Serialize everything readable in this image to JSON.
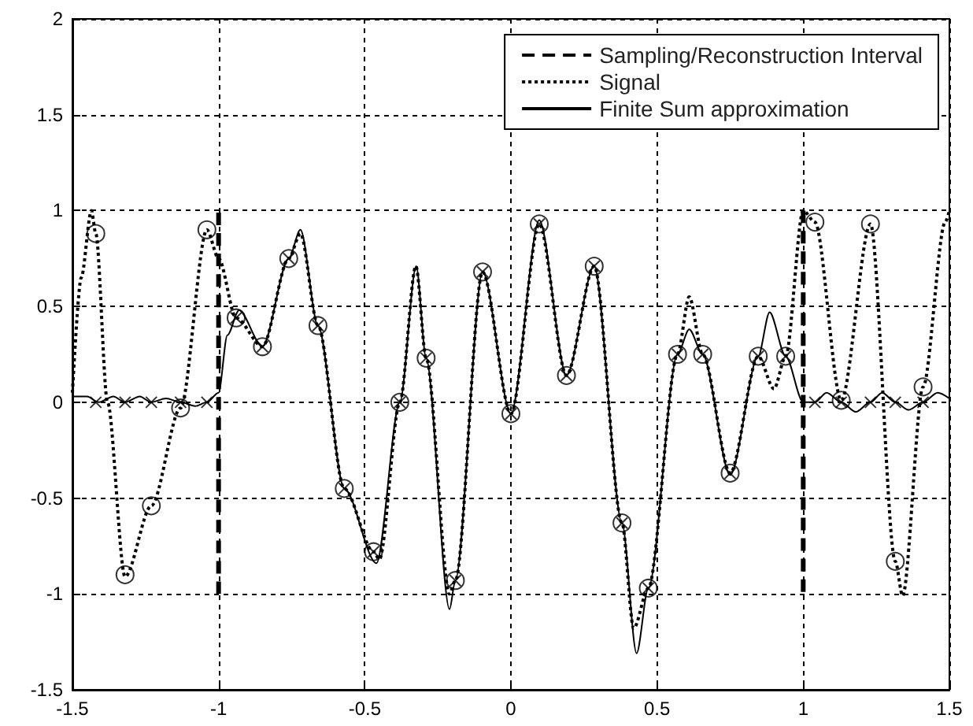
{
  "chart_data": {
    "type": "line",
    "xlim": [
      -1.5,
      1.5
    ],
    "ylim": [
      -1.5,
      2
    ],
    "xticks": [
      -1.5,
      -1,
      -0.5,
      0,
      0.5,
      1,
      1.5
    ],
    "yticks": [
      -1.5,
      -1,
      -0.5,
      0,
      0.5,
      1,
      1.5,
      2
    ],
    "grid": true,
    "legend": "top right",
    "series": [
      {
        "name": "Sampling/Reconstruction Interval",
        "type": "line",
        "line_style": "dashed",
        "marker": "none",
        "color": "#000000",
        "x": [
          -1,
          -1,
          0,
          1,
          1
        ],
        "values": [
          -1,
          1,
          null,
          1,
          -1
        ]
      },
      {
        "name": "Signal",
        "type": "line",
        "line_style": "dotted",
        "marker": "none",
        "color": "#000000",
        "x": [
          -1.5,
          -1.47,
          -1.435,
          -1.42,
          -1.38,
          -1.32,
          -1.23,
          -1.13,
          -1.04,
          -1.0,
          -0.94,
          -0.85,
          -0.76,
          -0.72,
          -0.66,
          -0.57,
          -0.47,
          -0.45,
          -0.38,
          -0.325,
          -0.29,
          -0.21,
          -0.19,
          -0.097,
          0.0,
          0.097,
          0.19,
          0.285,
          0.38,
          0.42,
          0.47,
          0.57,
          0.61,
          0.656,
          0.75,
          0.846,
          0.9,
          0.94,
          1.0,
          1.04,
          1.13,
          1.23,
          1.315,
          1.34,
          1.41,
          1.486,
          1.5
        ],
        "values": [
          0.05,
          0.65,
          1.0,
          0.88,
          0.0,
          -0.91,
          -0.54,
          -0.03,
          0.9,
          0.75,
          0.44,
          0.29,
          0.75,
          0.88,
          0.4,
          -0.45,
          -0.78,
          -0.82,
          0.0,
          0.71,
          0.23,
          -1.0,
          -0.93,
          0.68,
          -0.06,
          0.93,
          0.14,
          0.71,
          -0.63,
          -1.18,
          -0.97,
          0.25,
          0.55,
          0.25,
          -0.37,
          0.24,
          0.07,
          0.24,
          1.0,
          0.94,
          0.01,
          0.93,
          -0.83,
          -1.01,
          0.08,
          0.94,
          1.0
        ]
      },
      {
        "name": "Finite Sum approximation",
        "type": "line",
        "line_style": "solid",
        "marker": "none",
        "color": "#000000",
        "x": [
          -1.5,
          -1.45,
          -1.41,
          -1.36,
          -1.32,
          -1.27,
          -1.23,
          -1.18,
          -1.13,
          -1.08,
          -1.04,
          -1.0,
          -0.97,
          -0.93,
          -0.85,
          -0.76,
          -0.72,
          -0.66,
          -0.57,
          -0.46,
          -0.38,
          -0.324,
          -0.29,
          -0.21,
          -0.19,
          -0.097,
          0.0,
          0.097,
          0.19,
          0.285,
          0.38,
          0.43,
          0.47,
          0.57,
          0.61,
          0.656,
          0.75,
          0.846,
          0.885,
          0.94,
          1.0,
          1.04,
          1.08,
          1.13,
          1.18,
          1.23,
          1.27,
          1.315,
          1.36,
          1.41,
          1.46,
          1.5
        ],
        "values": [
          0.03,
          0.03,
          0.0,
          0.03,
          0.0,
          0.03,
          0.0,
          0.02,
          0.0,
          -0.02,
          0.0,
          0.05,
          0.35,
          0.48,
          0.29,
          0.75,
          0.9,
          0.4,
          -0.45,
          -0.84,
          0.0,
          0.71,
          0.23,
          -1.08,
          -0.93,
          0.68,
          -0.06,
          0.95,
          0.14,
          0.71,
          -0.63,
          -1.31,
          -0.97,
          0.25,
          0.38,
          0.25,
          -0.38,
          0.24,
          0.47,
          0.24,
          0.0,
          0.0,
          0.05,
          0.0,
          -0.05,
          0.0,
          0.05,
          0.0,
          -0.04,
          0.0,
          0.05,
          0.02
        ]
      },
      {
        "type": "scatter",
        "marker": "circle",
        "color": "#000000",
        "x": [
          -1.42,
          -1.32,
          -1.23,
          -1.13,
          -1.04,
          -0.94,
          -0.85,
          -0.76,
          -0.66,
          -0.57,
          -0.47,
          -0.38,
          -0.29,
          -0.19,
          -0.097,
          0.0,
          0.097,
          0.19,
          0.285,
          0.38,
          0.47,
          0.57,
          0.656,
          0.75,
          0.846,
          0.94,
          1.04,
          1.13,
          1.23,
          1.315,
          1.41
        ],
        "values": [
          0.88,
          -0.9,
          -0.54,
          -0.03,
          0.9,
          0.44,
          0.29,
          0.75,
          0.4,
          -0.45,
          -0.78,
          0.0,
          0.23,
          -0.93,
          0.68,
          -0.06,
          0.93,
          0.14,
          0.71,
          -0.63,
          -0.97,
          0.25,
          0.25,
          -0.37,
          0.24,
          0.24,
          0.94,
          0.01,
          0.93,
          -0.83,
          0.08
        ]
      },
      {
        "type": "scatter",
        "marker": "cross",
        "color": "#000000",
        "x": [
          -1.42,
          -1.32,
          -1.23,
          -1.13,
          -1.04,
          -0.94,
          -0.85,
          -0.76,
          -0.66,
          -0.57,
          -0.47,
          -0.38,
          -0.29,
          -0.19,
          -0.097,
          0.0,
          0.097,
          0.19,
          0.285,
          0.38,
          0.47,
          0.57,
          0.656,
          0.75,
          0.846,
          0.94,
          1.04,
          1.13,
          1.23,
          1.315,
          1.41
        ],
        "values": [
          0.0,
          0.0,
          0.0,
          0.0,
          0.0,
          0.44,
          0.29,
          0.75,
          0.4,
          -0.45,
          -0.78,
          0.0,
          0.23,
          -0.93,
          0.68,
          -0.06,
          0.93,
          0.14,
          0.71,
          -0.63,
          -0.97,
          0.25,
          0.25,
          -0.37,
          0.24,
          0.24,
          0.0,
          0.0,
          0.0,
          0.0,
          0.0
        ]
      }
    ]
  }
}
